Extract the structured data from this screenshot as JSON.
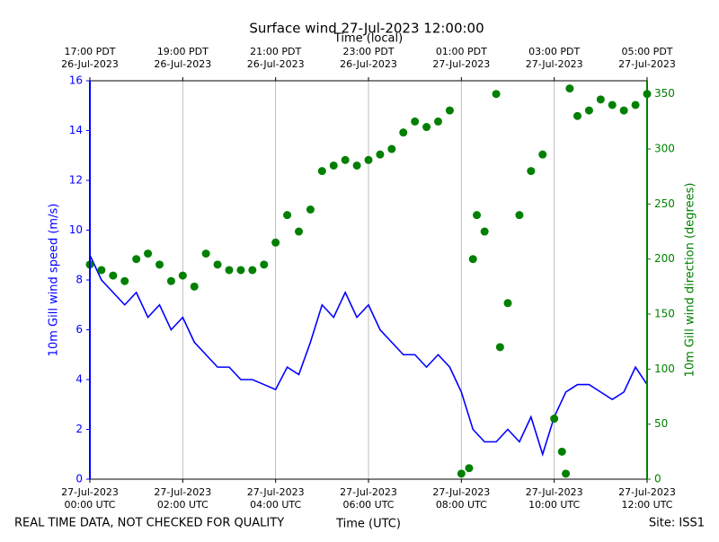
{
  "chart_data": {
    "type": "line",
    "title": "Surface wind 27-Jul-2023 12:00:00",
    "xlabel": "Time (UTC)",
    "top_xlabel": "Time (local)",
    "ylabel": "10m Gill wind speed (m/s)",
    "y2label": "10m Gill wind direction (degrees)",
    "footnote_left": "REAL TIME DATA, NOT CHECKED FOR QUALITY",
    "footnote_right": "Site: ISS1",
    "grid": "x",
    "xlim": [
      "2023-07-27 00:00",
      "2023-07-27 12:00"
    ],
    "xticks": [
      {
        "value": "2023-07-27 00:00",
        "label": "27-Jul-2023\n00:00 UTC"
      },
      {
        "value": "2023-07-27 02:00",
        "label": "27-Jul-2023\n02:00 UTC"
      },
      {
        "value": "2023-07-27 04:00",
        "label": "27-Jul-2023\n04:00 UTC"
      },
      {
        "value": "2023-07-27 06:00",
        "label": "27-Jul-2023\n06:00 UTC"
      },
      {
        "value": "2023-07-27 08:00",
        "label": "27-Jul-2023\n08:00 UTC"
      },
      {
        "value": "2023-07-27 10:00",
        "label": "27-Jul-2023\n10:00 UTC"
      },
      {
        "value": "2023-07-27 12:00",
        "label": "27-Jul-2023\n12:00 UTC"
      }
    ],
    "top_xticks": [
      {
        "value": "2023-07-27 00:00",
        "label": "17:00 PDT\n26-Jul-2023"
      },
      {
        "value": "2023-07-27 02:00",
        "label": "19:00 PDT\n26-Jul-2023"
      },
      {
        "value": "2023-07-27 04:00",
        "label": "21:00 PDT\n26-Jul-2023"
      },
      {
        "value": "2023-07-27 06:00",
        "label": "23:00 PDT\n26-Jul-2023"
      },
      {
        "value": "2023-07-27 08:00",
        "label": "01:00 PDT\n27-Jul-2023"
      },
      {
        "value": "2023-07-27 10:00",
        "label": "03:00 PDT\n27-Jul-2023"
      },
      {
        "value": "2023-07-27 12:00",
        "label": "05:00 PDT\n27-Jul-2023"
      }
    ],
    "ylim": [
      0,
      16
    ],
    "yticks": [
      0,
      2,
      4,
      6,
      8,
      10,
      12,
      14,
      16
    ],
    "ycolor": "#0000ff",
    "y2lim": [
      0,
      362
    ],
    "y2ticks": [
      0,
      50,
      100,
      150,
      200,
      250,
      300,
      350
    ],
    "y2color": "#008000",
    "series": [
      {
        "name": "10m Gill wind speed",
        "color": "#0000ff",
        "style": "line",
        "axis": "y",
        "x": [
          "2023-07-27 00:00",
          "2023-07-27 00:15",
          "2023-07-27 00:30",
          "2023-07-27 00:45",
          "2023-07-27 01:00",
          "2023-07-27 01:15",
          "2023-07-27 01:30",
          "2023-07-27 01:45",
          "2023-07-27 02:00",
          "2023-07-27 02:15",
          "2023-07-27 02:30",
          "2023-07-27 02:45",
          "2023-07-27 03:00",
          "2023-07-27 03:15",
          "2023-07-27 03:30",
          "2023-07-27 03:45",
          "2023-07-27 04:00",
          "2023-07-27 04:15",
          "2023-07-27 04:30",
          "2023-07-27 04:45",
          "2023-07-27 05:00",
          "2023-07-27 05:15",
          "2023-07-27 05:30",
          "2023-07-27 05:45",
          "2023-07-27 06:00",
          "2023-07-27 06:15",
          "2023-07-27 06:30",
          "2023-07-27 06:45",
          "2023-07-27 07:00",
          "2023-07-27 07:15",
          "2023-07-27 07:30",
          "2023-07-27 07:45",
          "2023-07-27 08:00",
          "2023-07-27 08:15",
          "2023-07-27 08:30",
          "2023-07-27 08:45",
          "2023-07-27 09:00",
          "2023-07-27 09:15",
          "2023-07-27 09:30",
          "2023-07-27 09:45",
          "2023-07-27 10:00",
          "2023-07-27 10:15",
          "2023-07-27 10:30",
          "2023-07-27 10:45",
          "2023-07-27 11:00",
          "2023-07-27 11:15",
          "2023-07-27 11:30",
          "2023-07-27 11:45",
          "2023-07-27 12:00"
        ],
        "values": [
          9,
          8,
          7.5,
          7,
          7.5,
          6.5,
          7,
          6,
          6.5,
          5.5,
          5,
          4.5,
          4.5,
          4,
          4,
          3.8,
          3.6,
          4.5,
          4.2,
          5.5,
          7,
          6.5,
          7.5,
          6.5,
          7,
          6,
          5.5,
          5,
          5,
          4.5,
          5,
          4.5,
          3.5,
          2,
          1.5,
          1.5,
          2,
          1.5,
          2.5,
          1,
          2.5,
          3.5,
          3.8,
          3.8,
          3.5,
          3.2,
          3.5,
          4.5,
          3.8
        ]
      },
      {
        "name": "10m Gill wind direction",
        "color": "#008000",
        "style": "scatter",
        "axis": "y2",
        "x": [
          "2023-07-27 00:00",
          "2023-07-27 00:15",
          "2023-07-27 00:30",
          "2023-07-27 00:45",
          "2023-07-27 01:00",
          "2023-07-27 01:15",
          "2023-07-27 01:30",
          "2023-07-27 01:45",
          "2023-07-27 02:00",
          "2023-07-27 02:15",
          "2023-07-27 02:30",
          "2023-07-27 02:45",
          "2023-07-27 03:00",
          "2023-07-27 03:15",
          "2023-07-27 03:30",
          "2023-07-27 03:45",
          "2023-07-27 04:00",
          "2023-07-27 04:15",
          "2023-07-27 04:30",
          "2023-07-27 04:45",
          "2023-07-27 05:00",
          "2023-07-27 05:15",
          "2023-07-27 05:30",
          "2023-07-27 05:45",
          "2023-07-27 06:00",
          "2023-07-27 06:15",
          "2023-07-27 06:30",
          "2023-07-27 06:45",
          "2023-07-27 07:00",
          "2023-07-27 07:15",
          "2023-07-27 07:30",
          "2023-07-27 07:45",
          "2023-07-27 08:00",
          "2023-07-27 08:10",
          "2023-07-27 08:15",
          "2023-07-27 08:20",
          "2023-07-27 08:30",
          "2023-07-27 08:45",
          "2023-07-27 08:50",
          "2023-07-27 09:00",
          "2023-07-27 09:15",
          "2023-07-27 09:30",
          "2023-07-27 09:45",
          "2023-07-27 10:00",
          "2023-07-27 10:10",
          "2023-07-27 10:15",
          "2023-07-27 10:20",
          "2023-07-27 10:30",
          "2023-07-27 10:45",
          "2023-07-27 11:00",
          "2023-07-27 11:15",
          "2023-07-27 11:30",
          "2023-07-27 11:45",
          "2023-07-27 12:00"
        ],
        "values": [
          195,
          190,
          185,
          180,
          200,
          205,
          195,
          180,
          185,
          175,
          205,
          195,
          190,
          190,
          190,
          195,
          215,
          240,
          225,
          245,
          280,
          285,
          290,
          285,
          290,
          295,
          300,
          315,
          325,
          320,
          325,
          335,
          5,
          10,
          200,
          240,
          225,
          350,
          120,
          160,
          240,
          280,
          295,
          55,
          25,
          5,
          355,
          330,
          335,
          345,
          340,
          335,
          340,
          350
        ]
      }
    ]
  }
}
